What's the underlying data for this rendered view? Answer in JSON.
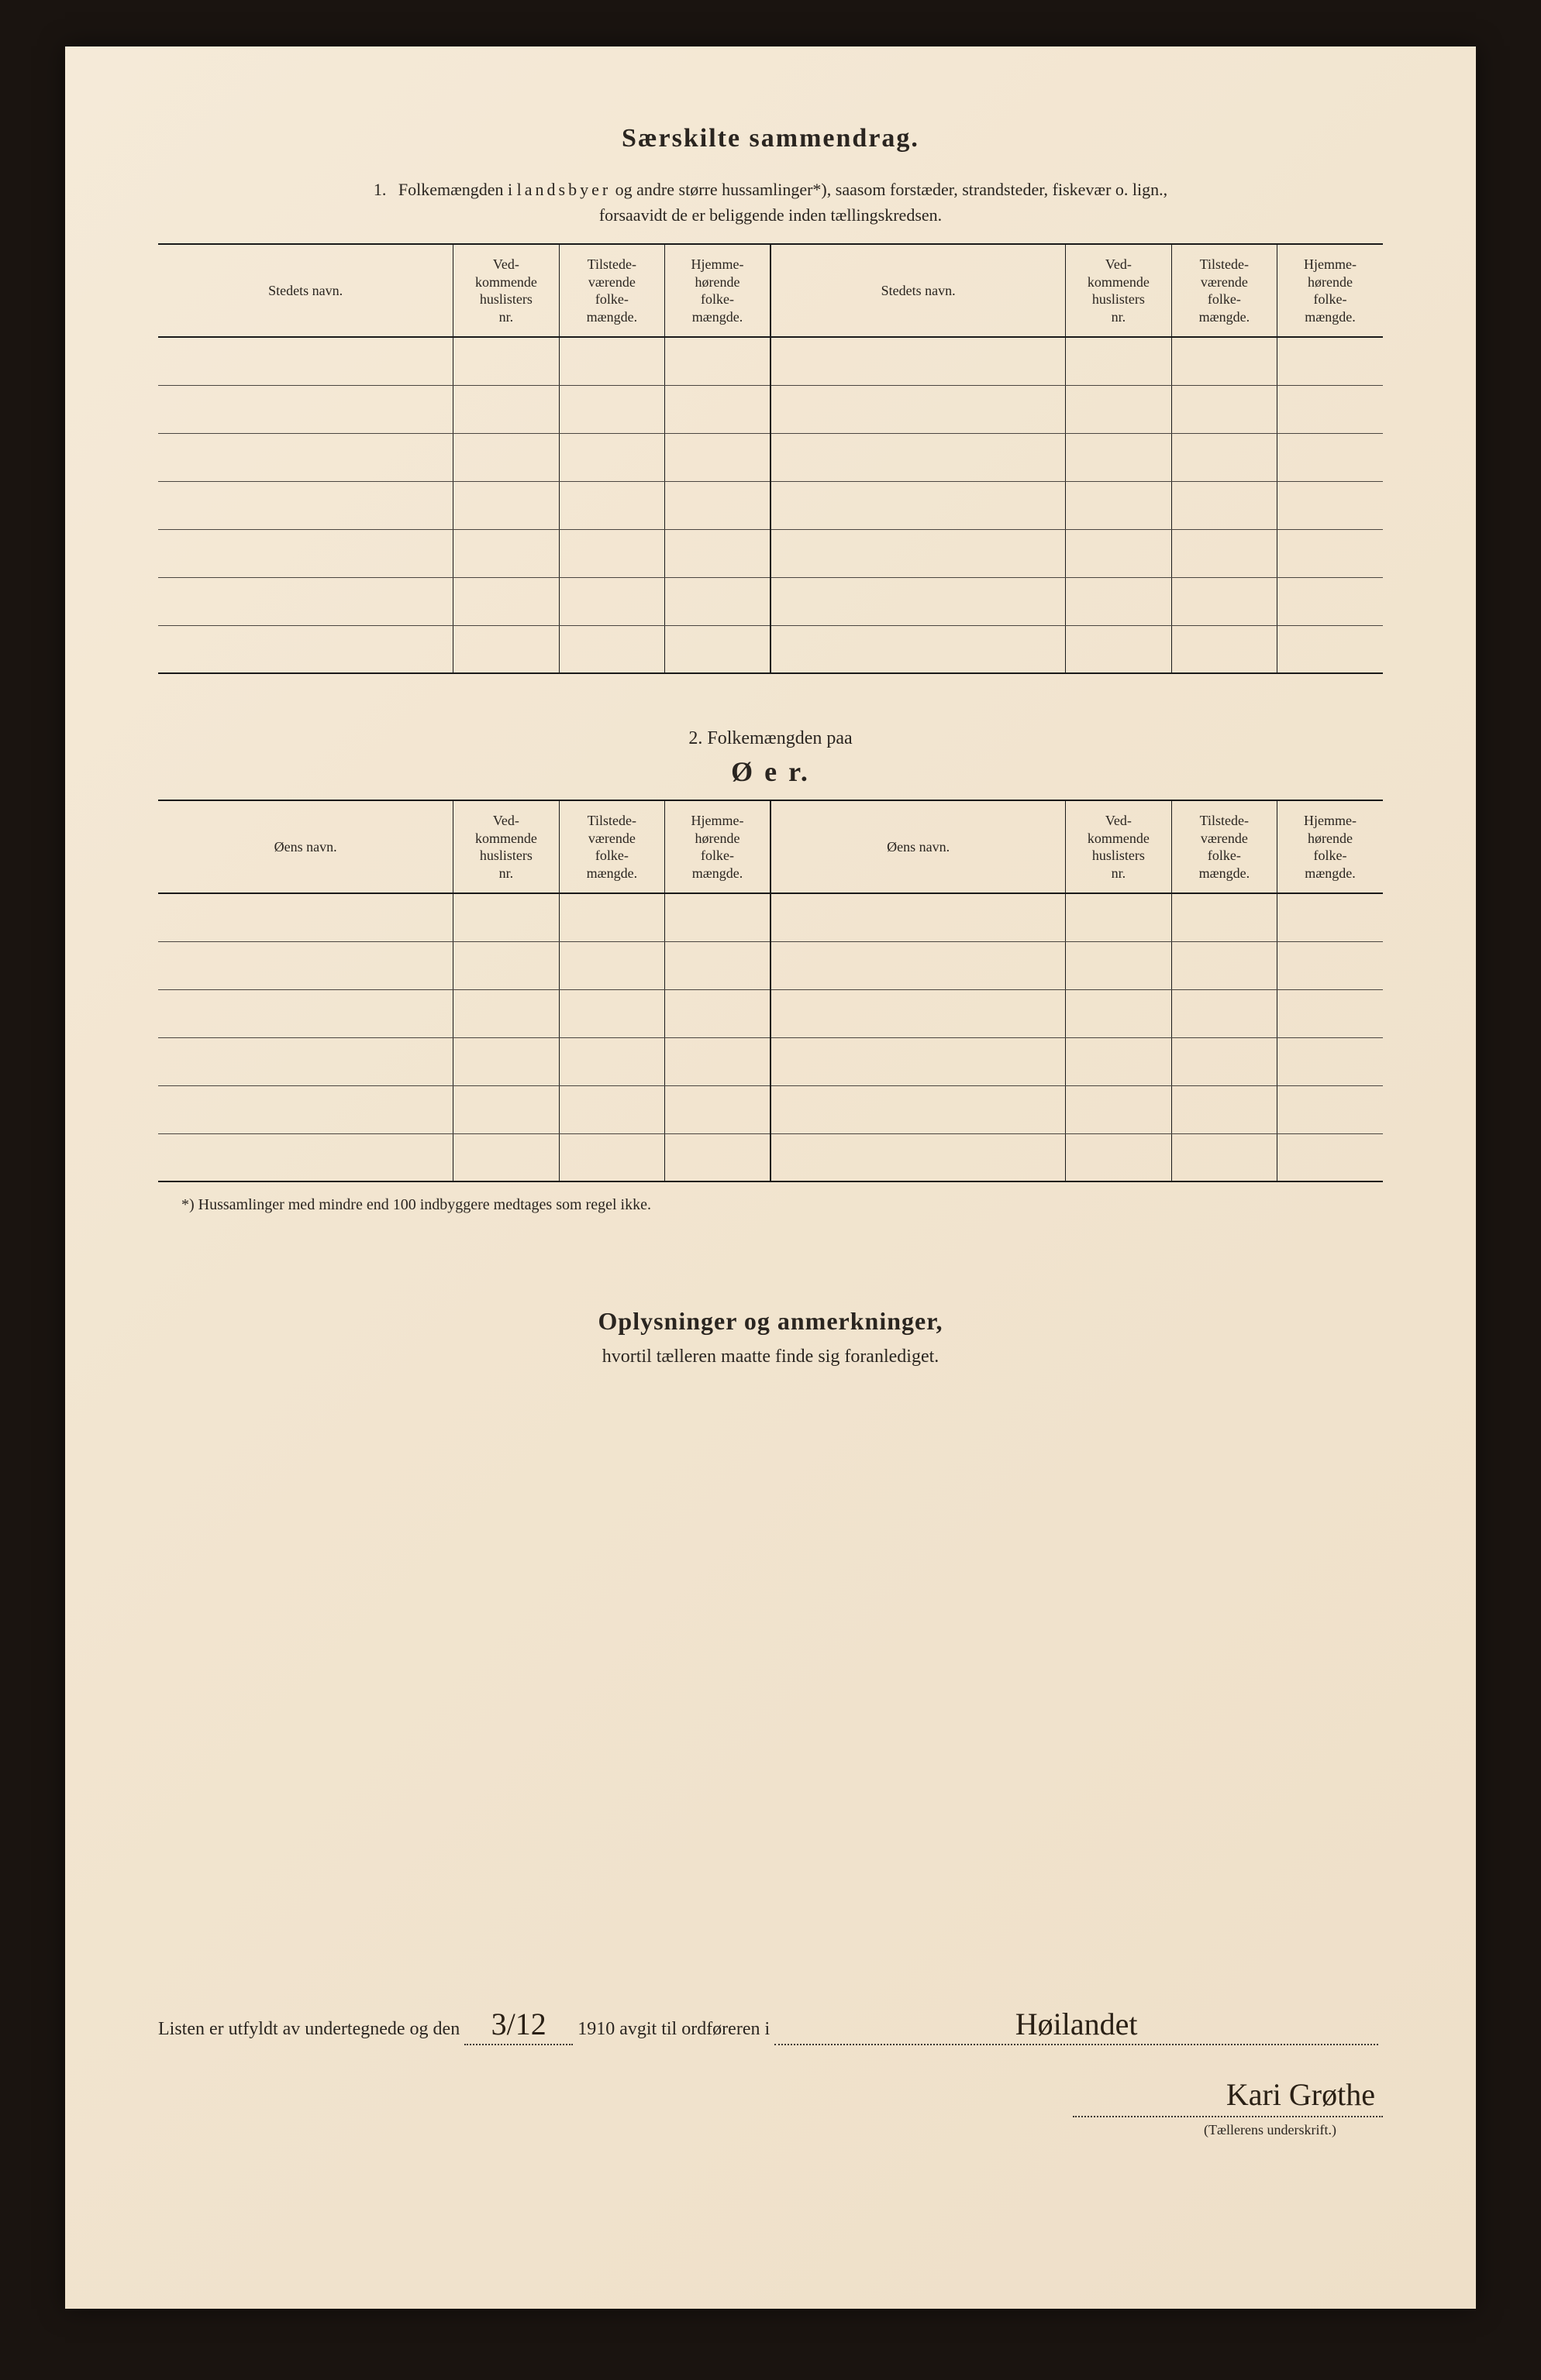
{
  "title": "Særskilte sammendrag.",
  "section1": {
    "number": "1.",
    "text_a": "Folkemængden i ",
    "text_spaced": "landsbyer",
    "text_b": " og andre større hussamlinger*), saasom forstæder, strandsteder, fiskevær o. lign.,",
    "text_c": "forsaavidt de er beliggende inden tællingskredsen."
  },
  "table_headers": {
    "h1": "Stedets navn.",
    "h2": "Ved-\nkommende\nhuslisters\nnr.",
    "h3": "Tilstede-\nværende\nfolke-\nmængde.",
    "h4": "Hjemme-\nhørende\nfolke-\nmængde.",
    "h5": "Stedets navn.",
    "h6": "Ved-\nkommende\nhuslisters\nnr.",
    "h7": "Tilstede-\nværende\nfolke-\nmængde.",
    "h8": "Hjemme-\nhørende\nfolke-\nmængde."
  },
  "section2": {
    "line1": "2.   Folkemængden paa",
    "line2": "Ø e r."
  },
  "table2_headers": {
    "h1": "Øens navn.",
    "h5": "Øens navn."
  },
  "footnote": "*)   Hussamlinger med mindre end 100 indbyggere medtages som regel ikke.",
  "section3": {
    "title": "Oplysninger og anmerkninger,",
    "sub": "hvortil tælleren maatte finde sig foranlediget."
  },
  "signature": {
    "prefix": "Listen er utfyldt av undertegnede og den",
    "date": "3/12",
    "mid": "1910 avgit til ordføreren i",
    "place": "Høilandet",
    "name": "Kari Grøthe",
    "caption": "(Tællerens underskrift.)"
  },
  "table1_rows": 7,
  "table2_rows": 6,
  "colors": {
    "page_bg": "#f2e5d0",
    "text": "#2a2520",
    "rule": "#1a1a1a",
    "frame": "#1a1410"
  }
}
